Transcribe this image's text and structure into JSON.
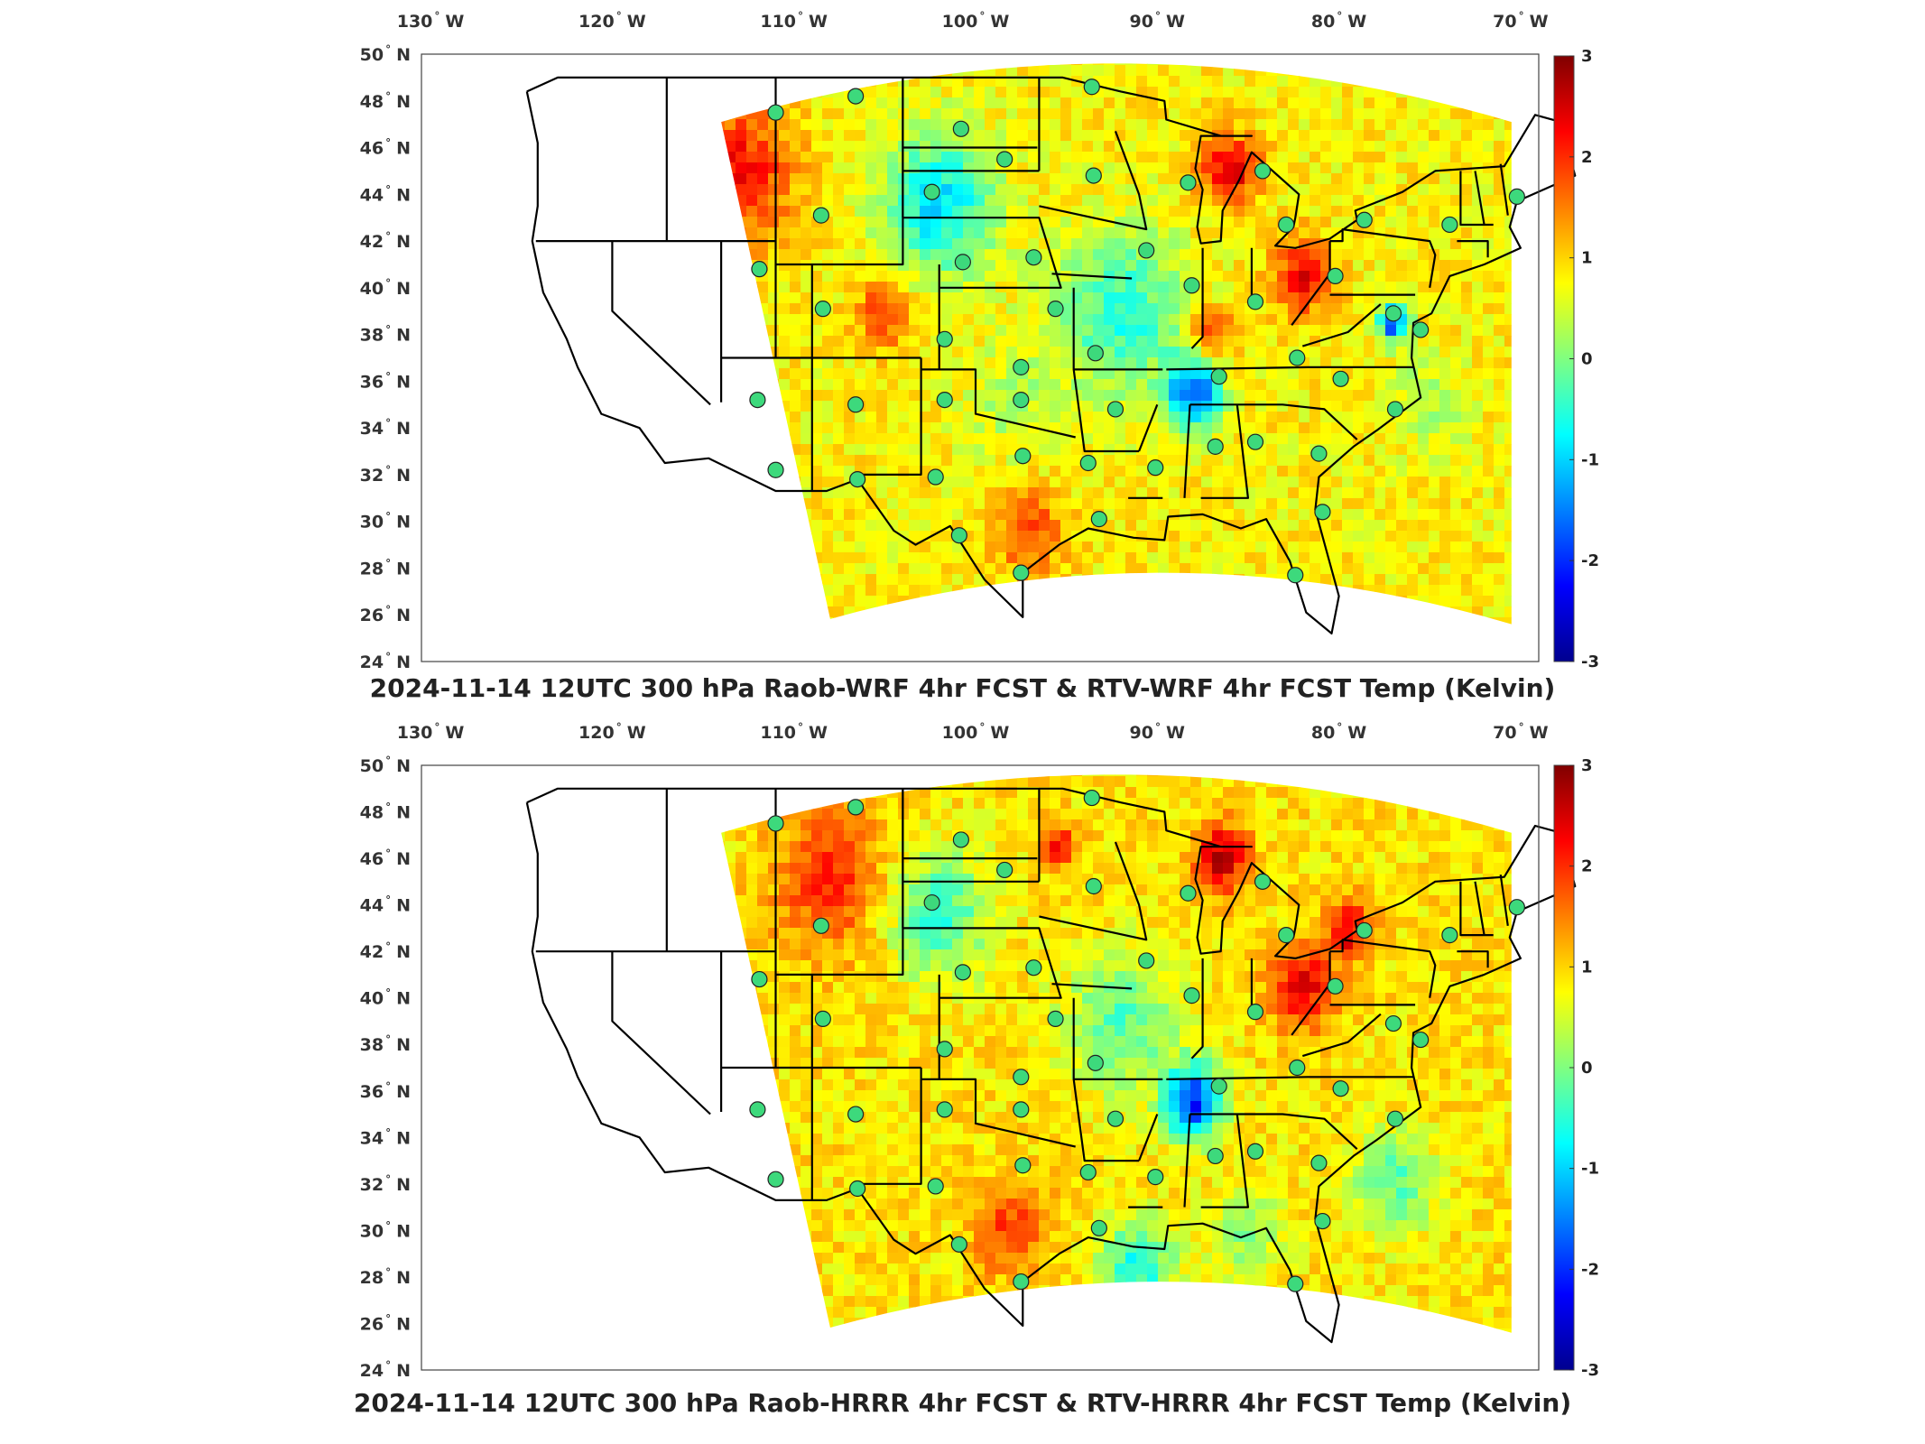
{
  "colors": {
    "colormap": [
      "#00008f",
      "#0000ff",
      "#0080ff",
      "#00ffff",
      "#80ff80",
      "#ffff00",
      "#ff8000",
      "#ff0000",
      "#800000"
    ],
    "map_lines": "#000000",
    "station_marker": "#3dd97c"
  },
  "chart_data": [
    {
      "type": "heatmap",
      "title": "2024-11-14 12UTC 300 hPa Raob-WRF 4hr FCST & RTV-WRF 4hr FCST Temp (Kelvin)",
      "x_tick_labels": [
        "130",
        "120",
        "110",
        "100",
        "90",
        "80",
        "70"
      ],
      "x_tick_values": [
        -130,
        -120,
        -110,
        -100,
        -90,
        -80,
        -70
      ],
      "x_hemisphere": "W",
      "y_tick_labels": [
        "24",
        "26",
        "28",
        "30",
        "32",
        "34",
        "36",
        "38",
        "40",
        "42",
        "44",
        "46",
        "48",
        "50"
      ],
      "y_tick_values": [
        24,
        26,
        28,
        30,
        32,
        34,
        36,
        38,
        40,
        42,
        44,
        46,
        48,
        50
      ],
      "y_hemisphere": "N",
      "degree_symbol": "°",
      "xlim": [
        -130.5,
        -69
      ],
      "ylim": [
        24,
        50
      ],
      "colorbar": {
        "ticks": [
          "3",
          "2",
          "1",
          "0",
          "-1",
          "-2",
          "-3"
        ],
        "range": [
          -3,
          3
        ]
      },
      "field": {
        "base": 0.8,
        "hotspots": [
          {
            "lon": -113,
            "lat": 45,
            "value": 2.2,
            "radius": 3.0
          },
          {
            "lon": -105,
            "lat": 39,
            "value": 2.0,
            "radius": 1.5
          },
          {
            "lon": -86,
            "lat": 45,
            "value": 2.4,
            "radius": 1.6
          },
          {
            "lon": -82,
            "lat": 40.5,
            "value": 2.3,
            "radius": 1.6
          },
          {
            "lon": -97,
            "lat": 29.5,
            "value": 1.8,
            "radius": 2.0
          },
          {
            "lon": -87,
            "lat": 38,
            "value": 2.0,
            "radius": 1.2
          },
          {
            "lon": -102,
            "lat": 43.5,
            "value": -0.9,
            "radius": 3.0
          },
          {
            "lon": -92,
            "lat": 39,
            "value": -0.5,
            "radius": 3.5
          },
          {
            "lon": -88,
            "lat": 35.5,
            "value": -1.7,
            "radius": 1.5
          },
          {
            "lon": -77,
            "lat": 38.5,
            "value": -2.0,
            "radius": 0.8
          },
          {
            "lon": -75,
            "lat": 35,
            "value": 0.2,
            "radius": 2.0
          },
          {
            "lon": -98,
            "lat": 35,
            "value": 0.3,
            "radius": 2.5
          }
        ]
      },
      "stations": [
        {
          "lon": -111,
          "lat": 47.5
        },
        {
          "lon": -106.6,
          "lat": 48.2
        },
        {
          "lon": -100.8,
          "lat": 46.8
        },
        {
          "lon": -93.6,
          "lat": 48.6
        },
        {
          "lon": -98.4,
          "lat": 45.5
        },
        {
          "lon": -108.5,
          "lat": 43.1
        },
        {
          "lon": -102.4,
          "lat": 44.1
        },
        {
          "lon": -93.5,
          "lat": 44.8
        },
        {
          "lon": -88.3,
          "lat": 44.5
        },
        {
          "lon": -84.2,
          "lat": 45
        },
        {
          "lon": -82.9,
          "lat": 42.7
        },
        {
          "lon": -78.6,
          "lat": 42.9
        },
        {
          "lon": -73.9,
          "lat": 42.7
        },
        {
          "lon": -70.2,
          "lat": 43.9
        },
        {
          "lon": -111.9,
          "lat": 40.8
        },
        {
          "lon": -100.7,
          "lat": 41.1
        },
        {
          "lon": -96.8,
          "lat": 41.3
        },
        {
          "lon": -90.6,
          "lat": 41.6
        },
        {
          "lon": -88.1,
          "lat": 40.1
        },
        {
          "lon": -84.6,
          "lat": 39.4
        },
        {
          "lon": -80.2,
          "lat": 40.5
        },
        {
          "lon": -77,
          "lat": 38.9
        },
        {
          "lon": -75.5,
          "lat": 38.2
        },
        {
          "lon": -108.4,
          "lat": 39.1
        },
        {
          "lon": -95.6,
          "lat": 39.1
        },
        {
          "lon": -101.7,
          "lat": 37.8
        },
        {
          "lon": -97.5,
          "lat": 36.6
        },
        {
          "lon": -93.4,
          "lat": 37.2
        },
        {
          "lon": -86.6,
          "lat": 36.2
        },
        {
          "lon": -82.3,
          "lat": 37
        },
        {
          "lon": -79.9,
          "lat": 36.1
        },
        {
          "lon": -106.6,
          "lat": 35
        },
        {
          "lon": -101.7,
          "lat": 35.2
        },
        {
          "lon": -97.5,
          "lat": 35.2
        },
        {
          "lon": -92.3,
          "lat": 34.8
        },
        {
          "lon": -76.9,
          "lat": 34.8
        },
        {
          "lon": -112,
          "lat": 35.2
        },
        {
          "lon": -111,
          "lat": 32.2
        },
        {
          "lon": -106.5,
          "lat": 31.8
        },
        {
          "lon": -102.2,
          "lat": 31.9
        },
        {
          "lon": -97.4,
          "lat": 32.8
        },
        {
          "lon": -93.8,
          "lat": 32.5
        },
        {
          "lon": -90.1,
          "lat": 32.3
        },
        {
          "lon": -86.8,
          "lat": 33.2
        },
        {
          "lon": -84.6,
          "lat": 33.4
        },
        {
          "lon": -81.1,
          "lat": 32.9
        },
        {
          "lon": -80.9,
          "lat": 30.4
        },
        {
          "lon": -93.2,
          "lat": 30.1
        },
        {
          "lon": -100.9,
          "lat": 29.4
        },
        {
          "lon": -97.5,
          "lat": 27.8
        },
        {
          "lon": -82.4,
          "lat": 27.7
        }
      ]
    },
    {
      "type": "heatmap",
      "title": "2024-11-14 12UTC 300 hPa Raob-HRRR 4hr FCST & RTV-HRRR 4hr FCST Temp (Kelvin)",
      "x_tick_labels": [
        "130",
        "120",
        "110",
        "100",
        "90",
        "80",
        "70"
      ],
      "x_tick_values": [
        -130,
        -120,
        -110,
        -100,
        -90,
        -80,
        -70
      ],
      "x_hemisphere": "W",
      "y_tick_labels": [
        "24",
        "26",
        "28",
        "30",
        "32",
        "34",
        "36",
        "38",
        "40",
        "42",
        "44",
        "46",
        "48",
        "50"
      ],
      "y_tick_values": [
        24,
        26,
        28,
        30,
        32,
        34,
        36,
        38,
        40,
        42,
        44,
        46,
        48,
        50
      ],
      "y_hemisphere": "N",
      "degree_symbol": "°",
      "xlim": [
        -130.5,
        -69
      ],
      "ylim": [
        24,
        50
      ],
      "colorbar": {
        "ticks": [
          "3",
          "2",
          "1",
          "0",
          "-1",
          "-2",
          "-3"
        ],
        "range": [
          -3,
          3
        ]
      },
      "field": {
        "base": 0.9,
        "hotspots": [
          {
            "lon": -108,
            "lat": 45,
            "value": 2.0,
            "radius": 3.0
          },
          {
            "lon": -86.5,
            "lat": 46,
            "value": 2.6,
            "radius": 1.5
          },
          {
            "lon": -82,
            "lat": 40.5,
            "value": 2.4,
            "radius": 1.8
          },
          {
            "lon": -79.5,
            "lat": 43,
            "value": 2.5,
            "radius": 1.2
          },
          {
            "lon": -95.5,
            "lat": 46.5,
            "value": 2.2,
            "radius": 1.0
          },
          {
            "lon": -98,
            "lat": 30,
            "value": 1.9,
            "radius": 2.0
          },
          {
            "lon": -102,
            "lat": 43.5,
            "value": -0.4,
            "radius": 2.8
          },
          {
            "lon": -92,
            "lat": 39,
            "value": -0.3,
            "radius": 3.0
          },
          {
            "lon": -88,
            "lat": 35.5,
            "value": -2.0,
            "radius": 1.6
          },
          {
            "lon": -91,
            "lat": 28.5,
            "value": -0.6,
            "radius": 2.0
          },
          {
            "lon": -77,
            "lat": 32,
            "value": -0.2,
            "radius": 2.2
          },
          {
            "lon": -85,
            "lat": 30,
            "value": 0.1,
            "radius": 2.0
          }
        ]
      },
      "stations": [
        {
          "lon": -111,
          "lat": 47.5
        },
        {
          "lon": -106.6,
          "lat": 48.2
        },
        {
          "lon": -100.8,
          "lat": 46.8
        },
        {
          "lon": -93.6,
          "lat": 48.6
        },
        {
          "lon": -98.4,
          "lat": 45.5
        },
        {
          "lon": -108.5,
          "lat": 43.1
        },
        {
          "lon": -102.4,
          "lat": 44.1
        },
        {
          "lon": -93.5,
          "lat": 44.8
        },
        {
          "lon": -88.3,
          "lat": 44.5
        },
        {
          "lon": -84.2,
          "lat": 45
        },
        {
          "lon": -82.9,
          "lat": 42.7
        },
        {
          "lon": -78.6,
          "lat": 42.9
        },
        {
          "lon": -73.9,
          "lat": 42.7
        },
        {
          "lon": -70.2,
          "lat": 43.9
        },
        {
          "lon": -111.9,
          "lat": 40.8
        },
        {
          "lon": -100.7,
          "lat": 41.1
        },
        {
          "lon": -96.8,
          "lat": 41.3
        },
        {
          "lon": -90.6,
          "lat": 41.6
        },
        {
          "lon": -88.1,
          "lat": 40.1
        },
        {
          "lon": -84.6,
          "lat": 39.4
        },
        {
          "lon": -80.2,
          "lat": 40.5
        },
        {
          "lon": -77,
          "lat": 38.9
        },
        {
          "lon": -75.5,
          "lat": 38.2
        },
        {
          "lon": -108.4,
          "lat": 39.1
        },
        {
          "lon": -95.6,
          "lat": 39.1
        },
        {
          "lon": -101.7,
          "lat": 37.8
        },
        {
          "lon": -97.5,
          "lat": 36.6
        },
        {
          "lon": -93.4,
          "lat": 37.2
        },
        {
          "lon": -86.6,
          "lat": 36.2
        },
        {
          "lon": -82.3,
          "lat": 37
        },
        {
          "lon": -79.9,
          "lat": 36.1
        },
        {
          "lon": -106.6,
          "lat": 35
        },
        {
          "lon": -101.7,
          "lat": 35.2
        },
        {
          "lon": -97.5,
          "lat": 35.2
        },
        {
          "lon": -92.3,
          "lat": 34.8
        },
        {
          "lon": -76.9,
          "lat": 34.8
        },
        {
          "lon": -112,
          "lat": 35.2
        },
        {
          "lon": -111,
          "lat": 32.2
        },
        {
          "lon": -106.5,
          "lat": 31.8
        },
        {
          "lon": -102.2,
          "lat": 31.9
        },
        {
          "lon": -97.4,
          "lat": 32.8
        },
        {
          "lon": -93.8,
          "lat": 32.5
        },
        {
          "lon": -90.1,
          "lat": 32.3
        },
        {
          "lon": -86.8,
          "lat": 33.2
        },
        {
          "lon": -84.6,
          "lat": 33.4
        },
        {
          "lon": -81.1,
          "lat": 32.9
        },
        {
          "lon": -80.9,
          "lat": 30.4
        },
        {
          "lon": -93.2,
          "lat": 30.1
        },
        {
          "lon": -100.9,
          "lat": 29.4
        },
        {
          "lon": -97.5,
          "lat": 27.8
        },
        {
          "lon": -82.4,
          "lat": 27.7
        }
      ]
    }
  ]
}
